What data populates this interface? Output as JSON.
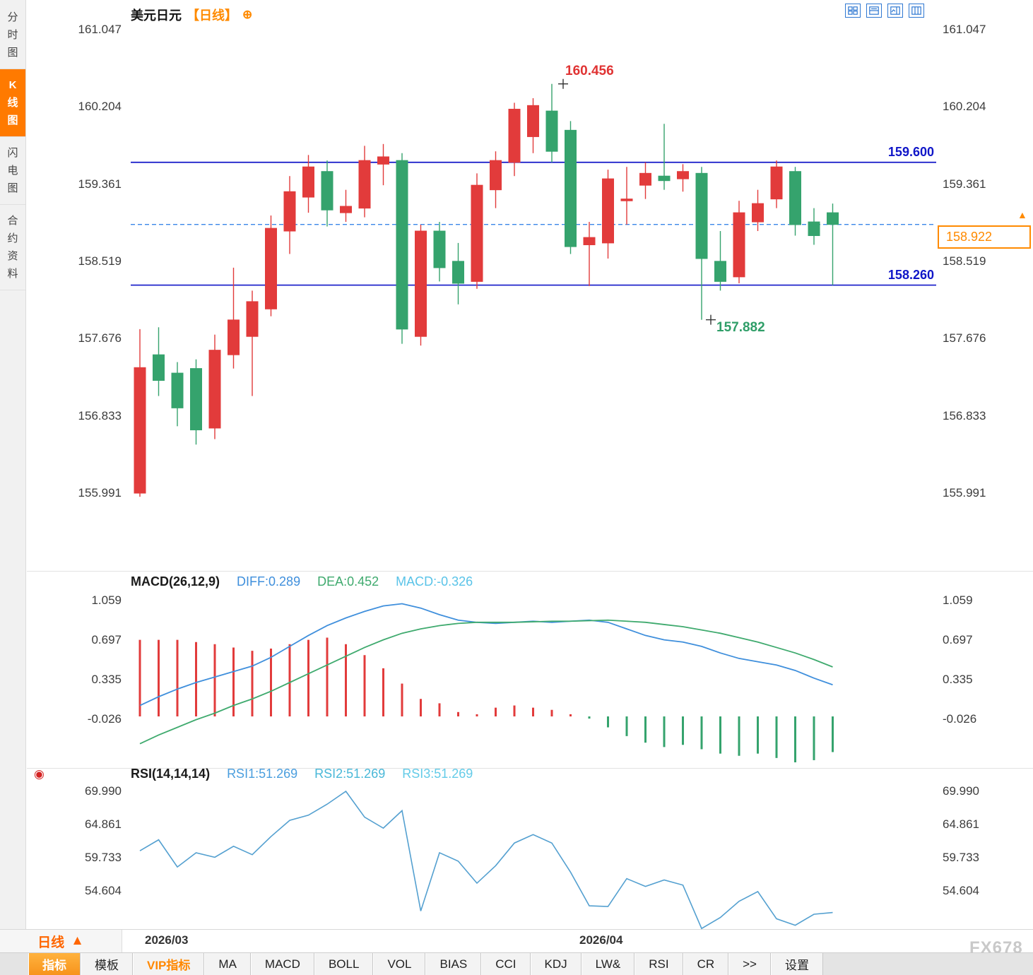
{
  "header": {
    "symbol": "美元日元",
    "period_tag": "【日线】",
    "layout_icons": [
      "grid-layout",
      "dual-pane",
      "chart-pane",
      "column-pane"
    ]
  },
  "sidebar": {
    "items": [
      {
        "label": "分时图",
        "active": false
      },
      {
        "label": "K线图",
        "active": true
      },
      {
        "label": "闪电图",
        "active": false
      },
      {
        "label": "合约资料",
        "active": false
      }
    ]
  },
  "main_chart": {
    "y_ticks": [
      "161.047",
      "160.204",
      "159.361",
      "158.519",
      "157.676",
      "156.833",
      "155.991"
    ],
    "levels": {
      "resistance": {
        "value": 159.6,
        "label": "159.600"
      },
      "support": {
        "value": 158.26,
        "label": "158.260"
      }
    },
    "current_price": {
      "value": 158.922,
      "label": "158.922"
    },
    "annotations": {
      "high": {
        "value": 160.456,
        "label": "160.456"
      },
      "low": {
        "value": 157.882,
        "label": "157.882"
      }
    }
  },
  "macd_panel": {
    "title": "MACD(26,12,9)",
    "diff_label": "DIFF:0.289",
    "dea_label": "DEA:0.452",
    "macd_label": "MACD:-0.326",
    "y_ticks": [
      "1.059",
      "0.697",
      "0.335",
      "-0.026"
    ]
  },
  "rsi_panel": {
    "title": "RSI(14,14,14)",
    "rsi1_label": "RSI1:51.269",
    "rsi2_label": "RSI2:51.269",
    "rsi3_label": "RSI3:51.269",
    "y_ticks": [
      "69.990",
      "64.861",
      "59.733",
      "54.604"
    ]
  },
  "x_axis": {
    "period_button": "日线",
    "labels": [
      {
        "text": "2026/03"
      },
      {
        "text": "2026/04"
      }
    ]
  },
  "toolbar": {
    "tabs": [
      {
        "label": "指标",
        "style": "active"
      },
      {
        "label": "模板"
      },
      {
        "label": "VIP指标",
        "style": "vip"
      },
      {
        "label": "MA"
      },
      {
        "label": "MACD"
      },
      {
        "label": "BOLL"
      },
      {
        "label": "VOL"
      },
      {
        "label": "BIAS"
      },
      {
        "label": "CCI"
      },
      {
        "label": "KDJ"
      },
      {
        "label": "LW&"
      },
      {
        "label": "RSI"
      },
      {
        "label": "CR"
      },
      {
        "label": ">>"
      },
      {
        "label": "设置"
      }
    ]
  },
  "watermark": "FX678",
  "colors": {
    "up": "#e23b3b",
    "down": "#35a36d",
    "level_blue": "#1016c8",
    "dashed_blue": "#3a86e8",
    "accent_orange": "#ff8a00",
    "diff": "#3f8fdc",
    "dea": "#3faa6e",
    "rsi_line": "#54a0d0"
  },
  "chart_data": [
    {
      "type": "candlestick",
      "title": "美元日元 日线",
      "ylim": [
        155.165,
        161.14
      ],
      "y_ticks": [
        161.047,
        160.204,
        159.361,
        158.519,
        157.676,
        156.833,
        155.991
      ],
      "x_labels": [
        "2026/03",
        "2026/04"
      ],
      "levels": [
        159.6,
        158.26
      ],
      "last_price": 158.922,
      "high_annotation": 160.456,
      "low_annotation": 157.882,
      "high_annotation_index": 22,
      "low_annotation_index": 30,
      "open": [
        155.99,
        157.5,
        157.3,
        157.35,
        156.7,
        157.5,
        157.7,
        158.0,
        158.85,
        159.22,
        159.5,
        159.05,
        159.1,
        159.58,
        159.62,
        157.7,
        158.85,
        158.52,
        158.3,
        159.3,
        159.6,
        159.88,
        160.16,
        159.95,
        158.7,
        158.72,
        159.18,
        159.35,
        159.45,
        159.42,
        159.48,
        158.52,
        158.35,
        158.95,
        159.2,
        159.5,
        158.95,
        159.05
      ],
      "high": [
        157.78,
        157.8,
        157.42,
        157.45,
        157.72,
        158.45,
        158.2,
        159.02,
        159.45,
        159.68,
        159.62,
        159.3,
        159.78,
        159.8,
        159.7,
        158.92,
        158.95,
        158.72,
        159.48,
        159.72,
        160.25,
        160.3,
        160.456,
        160.05,
        158.95,
        159.52,
        159.55,
        159.6,
        160.02,
        159.58,
        159.55,
        158.85,
        159.18,
        159.3,
        159.62,
        159.55,
        159.1,
        159.15
      ],
      "low": [
        155.95,
        157.05,
        156.72,
        156.52,
        156.58,
        157.35,
        157.05,
        157.92,
        158.6,
        159.05,
        158.9,
        158.95,
        159.0,
        159.35,
        157.62,
        157.6,
        158.3,
        158.05,
        158.22,
        159.1,
        159.45,
        159.7,
        159.6,
        158.6,
        158.25,
        158.55,
        158.92,
        159.2,
        159.3,
        159.28,
        157.882,
        158.2,
        158.28,
        158.85,
        159.1,
        158.8,
        158.7,
        158.26
      ],
      "close": [
        157.36,
        157.22,
        156.92,
        156.68,
        157.55,
        157.88,
        158.08,
        158.88,
        159.28,
        159.55,
        159.08,
        159.12,
        159.62,
        159.66,
        157.78,
        158.85,
        158.45,
        158.28,
        159.35,
        159.62,
        160.18,
        160.22,
        159.72,
        158.68,
        158.78,
        159.42,
        159.2,
        159.48,
        159.4,
        159.5,
        158.55,
        158.3,
        159.05,
        159.15,
        159.55,
        158.92,
        158.8,
        158.922
      ]
    },
    {
      "type": "macd",
      "title": "MACD(26,12,9)",
      "diff": 0.289,
      "dea": 0.452,
      "macd": -0.326,
      "ylim": [
        -0.4585,
        1.0914
      ],
      "y_ticks": [
        1.059,
        0.697,
        0.335,
        -0.026
      ],
      "diff_series": [
        0.1,
        0.18,
        0.25,
        0.31,
        0.36,
        0.41,
        0.46,
        0.54,
        0.64,
        0.74,
        0.83,
        0.9,
        0.96,
        1.01,
        1.03,
        0.99,
        0.93,
        0.88,
        0.86,
        0.85,
        0.86,
        0.87,
        0.86,
        0.87,
        0.88,
        0.86,
        0.8,
        0.74,
        0.7,
        0.68,
        0.64,
        0.58,
        0.53,
        0.5,
        0.47,
        0.42,
        0.35,
        0.289
      ],
      "dea_series": [
        -0.25,
        -0.17,
        -0.1,
        -0.03,
        0.03,
        0.1,
        0.16,
        0.23,
        0.31,
        0.39,
        0.47,
        0.55,
        0.63,
        0.7,
        0.76,
        0.8,
        0.83,
        0.85,
        0.86,
        0.86,
        0.86,
        0.865,
        0.87,
        0.87,
        0.875,
        0.88,
        0.87,
        0.86,
        0.84,
        0.82,
        0.79,
        0.76,
        0.72,
        0.68,
        0.63,
        0.58,
        0.52,
        0.452
      ],
      "hist_series": [
        0.7,
        0.7,
        0.7,
        0.68,
        0.66,
        0.63,
        0.6,
        0.62,
        0.66,
        0.7,
        0.72,
        0.66,
        0.56,
        0.44,
        0.3,
        0.16,
        0.12,
        0.04,
        0.02,
        0.08,
        0.1,
        0.08,
        0.06,
        0.02,
        -0.02,
        -0.1,
        -0.18,
        -0.24,
        -0.28,
        -0.26,
        -0.3,
        -0.34,
        -0.36,
        -0.34,
        -0.38,
        -0.42,
        -0.4,
        -0.326
      ]
    },
    {
      "type": "line",
      "title": "RSI(14,14,14)",
      "ylim": [
        48.71,
        71.08
      ],
      "y_ticks": [
        69.99,
        64.861,
        59.733,
        54.604
      ],
      "rsi1": 51.269,
      "rsi2": 51.269,
      "rsi3": 51.269,
      "rsi_series": [
        60.8,
        62.5,
        58.3,
        60.5,
        59.8,
        61.5,
        60.2,
        63.0,
        65.5,
        66.3,
        68.0,
        69.99,
        66.0,
        64.3,
        67.0,
        51.5,
        60.5,
        59.2,
        55.8,
        58.5,
        62.0,
        63.3,
        62.0,
        57.5,
        52.3,
        52.2,
        56.5,
        55.3,
        56.3,
        55.5,
        48.8,
        50.5,
        53.0,
        54.5,
        50.3,
        49.3,
        51.0,
        51.269
      ]
    }
  ]
}
